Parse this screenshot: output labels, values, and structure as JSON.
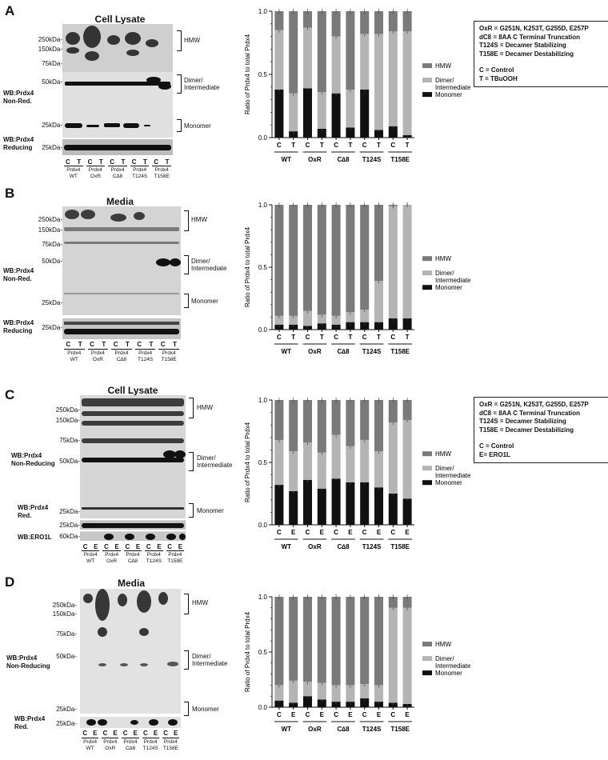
{
  "panels": {
    "A": {
      "label": "A",
      "title": "Cell Lysate",
      "conditions": [
        "C",
        "T"
      ],
      "mw": [
        "250kDa-",
        "150kDa-",
        "75kDa-",
        "50kDa-",
        "25kDa-"
      ],
      "mw_red": "25kDa-",
      "wb_nonred": [
        "WB:Prdx4",
        "Non-Red."
      ],
      "wb_red": [
        "WB:Prdx4",
        "Reducing"
      ],
      "bands": [
        "HMW",
        "Dimer/",
        "Intermediate",
        "Monomer"
      ]
    },
    "B": {
      "label": "B",
      "title": "Media",
      "conditions": [
        "C",
        "T"
      ],
      "mw": [
        "250kDa-",
        "150kDa-",
        "75kDa-",
        "50kDa-",
        "25kDa-"
      ],
      "mw_red": "25kDa-",
      "wb_nonred": [
        "WB:Prdx4",
        "Non-Red."
      ],
      "wb_red": [
        "WB:Prdx4",
        "Reducing"
      ],
      "bands": [
        "HMW",
        "Dimer/",
        "Intermediate",
        "Monomer"
      ]
    },
    "C": {
      "label": "C",
      "title": "Cell Lysate",
      "conditions": [
        "C",
        "E"
      ],
      "mw": [
        "250kDa-",
        "150kDa-",
        "75kDa-",
        "50kDa-",
        "25kDa-"
      ],
      "mw_red": "25kDa-",
      "mw_ero": "60kDa-",
      "wb_nonred": [
        "WB:Prdx4",
        "Non-Reducing"
      ],
      "wb_red": [
        "WB:Prdx4",
        "Red."
      ],
      "wb_ero": "WB:ERO1L",
      "bands": [
        "HMW",
        "Dimer/",
        "Intermediate",
        "Monomer"
      ]
    },
    "D": {
      "label": "D",
      "title": "Media",
      "conditions": [
        "C",
        "E"
      ],
      "mw": [
        "250kDa-",
        "150kDa-",
        "75kDa-",
        "50kDa-",
        "25kDa-"
      ],
      "mw_red": "25kDa-",
      "wb_nonred": [
        "WB:Prdx4",
        "Non-Reducing"
      ],
      "wb_red": [
        "WB:Prdx4",
        "Red."
      ],
      "bands": [
        "HMW",
        "Dimer/",
        "Intermediate",
        "Monomer"
      ]
    }
  },
  "samples": [
    [
      "Prdx4",
      "WT"
    ],
    [
      "Prdx4",
      "OxR"
    ],
    [
      "Prdx4",
      "C∆8"
    ],
    [
      "Prdx4",
      "T124S"
    ],
    [
      "Prdx4",
      "T158E"
    ]
  ],
  "groups": [
    "WT",
    "OxR",
    "C∆8",
    "T124S",
    "T158E"
  ],
  "legend_boxes": {
    "A": [
      "OxR = G251N, K253T, G255D, E257P",
      "dC8 = 8AA C Terminal Truncation",
      "T124S = Decamer Stabilizing",
      "T158E = Decamer Destabilizing",
      "",
      "C = Control",
      "T = TBuOOH"
    ],
    "C": [
      "OxR = G251N, K253T, G255D, E257P",
      "dC8 = 8AA C Terminal Truncation",
      "T124S = Decamer Stabilizing",
      "T158E = Decamer Destabilizing",
      "",
      "C = Control",
      "E= ERO1L"
    ]
  },
  "colors": {
    "hmw": "#7a7a7a",
    "dimer": "#b4b4b4",
    "monomer": "#111111"
  },
  "chart_data": [
    {
      "type": "bar",
      "panel": "A",
      "stacked": true,
      "categories": [
        "WT C",
        "WT T",
        "OxR C",
        "OxR T",
        "C∆8 C",
        "C∆8 T",
        "T124S C",
        "T124S T",
        "T158E C",
        "T158E T"
      ],
      "tick_labels": [
        "C",
        "T",
        "C",
        "T",
        "C",
        "T",
        "C",
        "T",
        "C",
        "T"
      ],
      "ylabel": "Ratio of Prdx4 to total Prdx4",
      "ylim": [
        0,
        1.0
      ],
      "yticks": [
        "0.0",
        "0.5",
        "1.0"
      ],
      "legend": "right",
      "series": [
        {
          "name": "Monomer",
          "values": [
            0.38,
            0.05,
            0.39,
            0.07,
            0.35,
            0.08,
            0.38,
            0.06,
            0.09,
            0.02
          ]
        },
        {
          "name": "Dimer/ Intermediate",
          "values": [
            0.47,
            0.3,
            0.48,
            0.29,
            0.45,
            0.3,
            0.44,
            0.76,
            0.75,
            0.82
          ]
        },
        {
          "name": "HMW",
          "values": [
            0.15,
            0.65,
            0.13,
            0.64,
            0.2,
            0.62,
            0.18,
            0.18,
            0.16,
            0.16
          ]
        }
      ]
    },
    {
      "type": "bar",
      "panel": "B",
      "stacked": true,
      "categories": [
        "WT C",
        "WT T",
        "OxR C",
        "OxR T",
        "C∆8 C",
        "C∆8 T",
        "T124S C",
        "T124S T",
        "T158E C",
        "T158E T"
      ],
      "tick_labels": [
        "C",
        "T",
        "C",
        "T",
        "C",
        "T",
        "C",
        "T",
        "C",
        "T"
      ],
      "ylabel": "Ratio of Prdx4 to total Prdx4",
      "ylim": [
        0,
        1.0
      ],
      "yticks": [
        "0.0",
        "0.5",
        "1.0"
      ],
      "legend": "right",
      "series": [
        {
          "name": "Monomer",
          "values": [
            0.04,
            0.04,
            0.03,
            0.05,
            0.04,
            0.06,
            0.06,
            0.06,
            0.09,
            0.09
          ]
        },
        {
          "name": "Dimer/ Intermediate",
          "values": [
            0.07,
            0.07,
            0.12,
            0.07,
            0.07,
            0.08,
            0.1,
            0.33,
            0.9,
            0.91
          ]
        },
        {
          "name": "HMW",
          "values": [
            0.89,
            0.89,
            0.85,
            0.88,
            0.89,
            0.86,
            0.84,
            0.61,
            0.01,
            0.0
          ]
        }
      ]
    },
    {
      "type": "bar",
      "panel": "C",
      "stacked": true,
      "categories": [
        "WT C",
        "WT E",
        "OxR C",
        "OxR E",
        "C∆8 C",
        "C∆8 E",
        "T124S C",
        "T124S E",
        "T158E C",
        "T158E E"
      ],
      "tick_labels": [
        "C",
        "E",
        "C",
        "E",
        "C",
        "E",
        "C",
        "E",
        "C",
        "E"
      ],
      "ylabel": "Ratio of Prdx4 to total Prdx4",
      "ylim": [
        0,
        1.0
      ],
      "yticks": [
        "0.0",
        "0.5",
        "1.0"
      ],
      "legend": "right",
      "series": [
        {
          "name": "Monomer",
          "values": [
            0.32,
            0.27,
            0.36,
            0.29,
            0.37,
            0.34,
            0.34,
            0.3,
            0.25,
            0.21
          ]
        },
        {
          "name": "Dimer/ Intermediate",
          "values": [
            0.36,
            0.32,
            0.3,
            0.29,
            0.35,
            0.29,
            0.34,
            0.29,
            0.57,
            0.63
          ]
        },
        {
          "name": "HMW",
          "values": [
            0.32,
            0.41,
            0.34,
            0.42,
            0.28,
            0.37,
            0.32,
            0.41,
            0.18,
            0.16
          ]
        }
      ]
    },
    {
      "type": "bar",
      "panel": "D",
      "stacked": true,
      "categories": [
        "WT C",
        "WT E",
        "OxR C",
        "OxR E",
        "C∆8 C",
        "C∆8 E",
        "T124S C",
        "T124S E",
        "T158E C",
        "T158E E"
      ],
      "tick_labels": [
        "C",
        "E",
        "C",
        "E",
        "C",
        "E",
        "C",
        "E",
        "C",
        "E"
      ],
      "ylabel": "Ratio of Prdx4 to total Prdx4",
      "ylim": [
        0,
        1.0
      ],
      "yticks": [
        "0.0",
        "0.5",
        "1.0"
      ],
      "legend": "right",
      "series": [
        {
          "name": "Monomer",
          "values": [
            0.06,
            0.04,
            0.1,
            0.07,
            0.05,
            0.05,
            0.08,
            0.05,
            0.04,
            0.03
          ]
        },
        {
          "name": "Dimer/ Intermediate",
          "values": [
            0.14,
            0.2,
            0.13,
            0.15,
            0.15,
            0.15,
            0.13,
            0.15,
            0.86,
            0.87
          ]
        },
        {
          "name": "HMW",
          "values": [
            0.8,
            0.76,
            0.77,
            0.78,
            0.8,
            0.8,
            0.79,
            0.8,
            0.1,
            0.1
          ]
        }
      ]
    }
  ]
}
